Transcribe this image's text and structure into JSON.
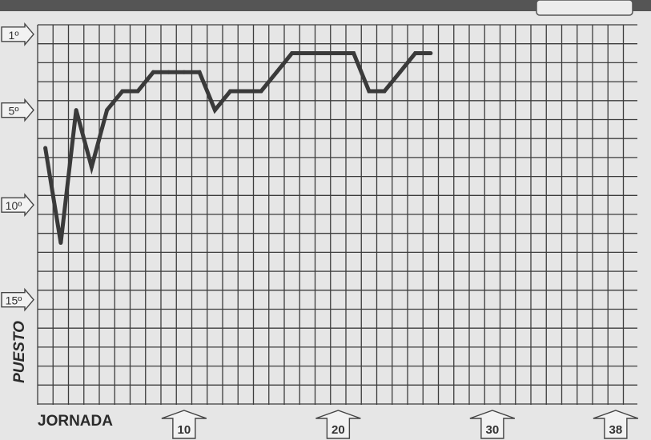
{
  "chart_data": {
    "type": "line",
    "title": "",
    "xlabel": "JORNADA",
    "ylabel": "PUESTO",
    "x_range": [
      1,
      38
    ],
    "y_range": [
      1,
      20
    ],
    "y_inverted": true,
    "grid": true,
    "x_markers": [
      "10",
      "20",
      "30",
      "38"
    ],
    "y_markers": [
      "1º",
      "5º",
      "10º",
      "15º"
    ],
    "series": [
      {
        "x": [
          1,
          2,
          3,
          4,
          5,
          6,
          7,
          8,
          9,
          10,
          11,
          12,
          13,
          14,
          15,
          16,
          17,
          18,
          19,
          20,
          21,
          22,
          23,
          24,
          25,
          26
        ],
        "y": [
          7,
          12,
          5,
          8,
          5,
          4,
          4,
          3,
          3,
          3,
          3,
          5,
          4,
          4,
          4,
          3,
          2,
          2,
          2,
          2,
          2,
          4,
          4,
          3,
          2,
          2
        ]
      }
    ],
    "colors": {
      "line": "#3a3a3a",
      "grid": "#3c3c3c",
      "paper": "#e6e6e6",
      "header": "#555555"
    }
  }
}
